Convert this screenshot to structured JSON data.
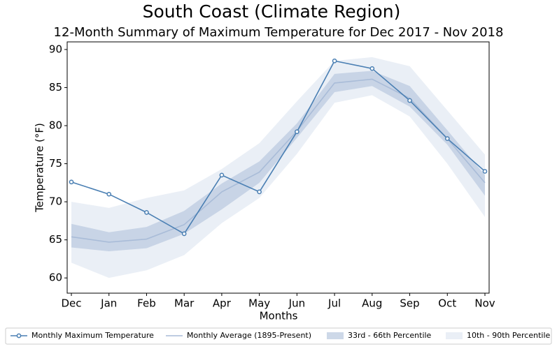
{
  "chart_data": {
    "type": "line",
    "title": "South Coast (Climate Region)",
    "subtitle": "12-Month Summary of Maximum Temperature for Dec 2017 - Nov 2018",
    "x_label": "Months",
    "y_label": "Temperature (°F)",
    "categories": [
      "Dec",
      "Jan",
      "Feb",
      "Mar",
      "Apr",
      "May",
      "Jun",
      "Jul",
      "Aug",
      "Sep",
      "Oct",
      "Nov"
    ],
    "ylim": [
      58,
      91
    ],
    "yticks": [
      60,
      65,
      70,
      75,
      80,
      85,
      90
    ],
    "grid": false,
    "legend": "bottom",
    "bands": [
      {
        "name": "10th - 90th Percentile",
        "color": "#e3e9f3",
        "low": [
          62.0,
          60.0,
          61.0,
          63.0,
          67.2,
          70.5,
          76.3,
          83.0,
          84.0,
          81.2,
          75.0,
          68.0
        ],
        "high": [
          70.0,
          69.2,
          70.5,
          71.5,
          74.3,
          77.7,
          83.2,
          88.5,
          89.0,
          87.8,
          82.0,
          76.2
        ]
      },
      {
        "name": "33rd - 66th Percentile",
        "color": "#bccbe0",
        "low": [
          64.0,
          63.5,
          63.9,
          65.8,
          69.0,
          72.5,
          78.4,
          84.4,
          85.2,
          82.5,
          77.5,
          70.8
        ],
        "high": [
          67.1,
          66.0,
          66.7,
          68.8,
          72.4,
          75.3,
          80.3,
          86.8,
          87.2,
          85.2,
          79.4,
          73.5
        ]
      }
    ],
    "series": [
      {
        "name": "Monthly Maximum Temperature",
        "color": "#4a7fb3",
        "marker": true,
        "values": [
          72.6,
          71.0,
          68.6,
          65.8,
          73.5,
          71.3,
          79.2,
          88.5,
          87.5,
          83.3,
          78.3,
          74.0
        ]
      },
      {
        "name": "Monthly Average (1895-Present)",
        "color": "#a9bcd8",
        "marker": false,
        "values": [
          65.4,
          64.7,
          65.1,
          67.0,
          71.3,
          73.9,
          79.3,
          85.6,
          86.1,
          83.6,
          78.3,
          72.5
        ]
      }
    ]
  }
}
